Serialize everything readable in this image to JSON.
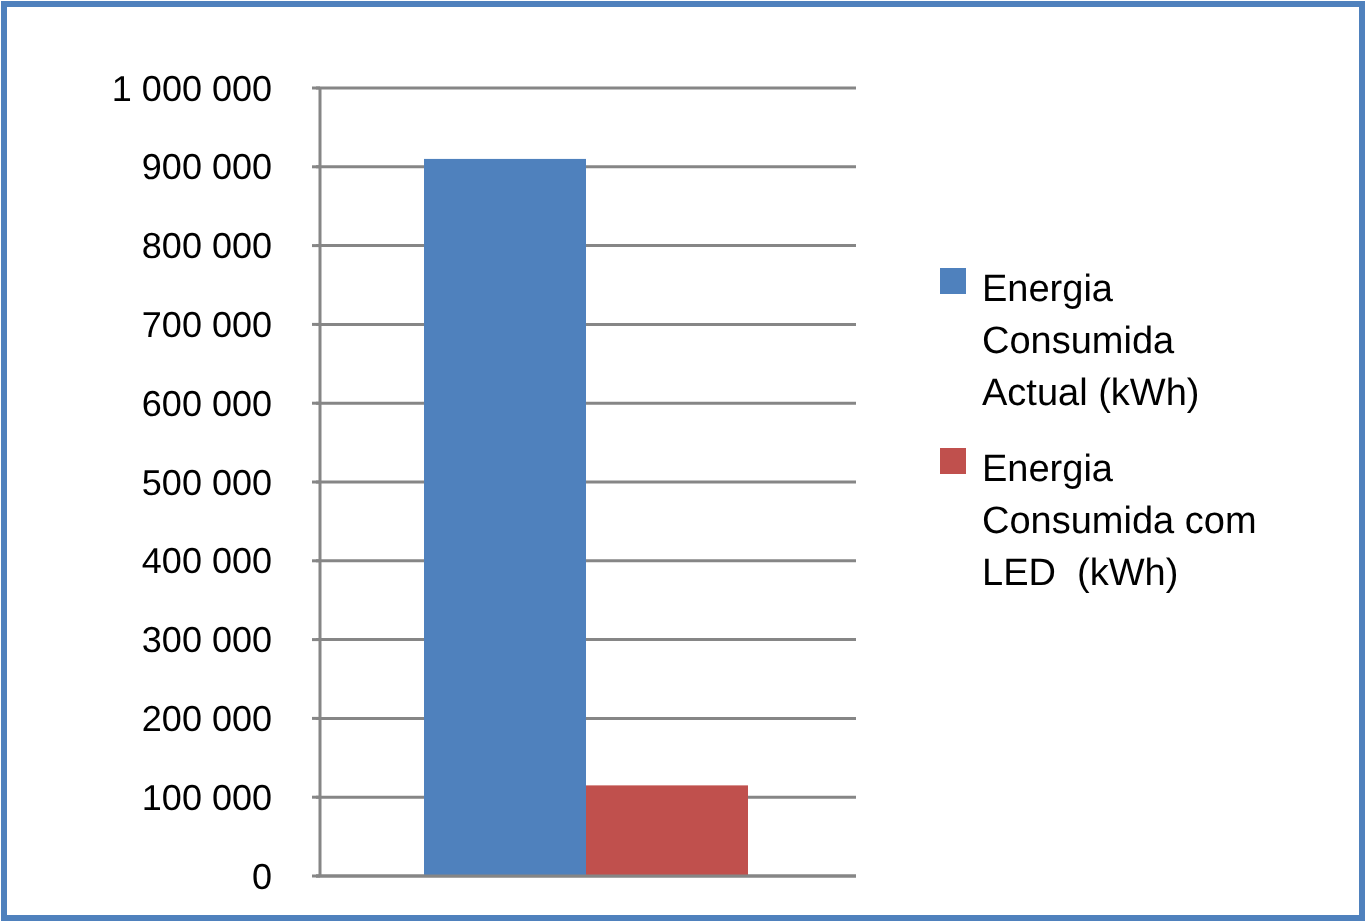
{
  "chart_data": {
    "type": "bar",
    "categories": [
      null
    ],
    "series": [
      {
        "name": "Energia Consumida Actual (kWh)",
        "color": "#4f81bd",
        "values": [
          910000
        ]
      },
      {
        "name": "Energia Consumida com LED  (kWh)",
        "color": "#c0504d",
        "values": [
          115000
        ]
      }
    ],
    "ylim": [
      0,
      1000000
    ],
    "yticks": [
      {
        "value": 0,
        "label": "0"
      },
      {
        "value": 100000,
        "label": "100 000"
      },
      {
        "value": 200000,
        "label": "200 000"
      },
      {
        "value": 300000,
        "label": "300 000"
      },
      {
        "value": 400000,
        "label": "400 000"
      },
      {
        "value": 500000,
        "label": "500 000"
      },
      {
        "value": 600000,
        "label": "600 000"
      },
      {
        "value": 700000,
        "label": "700 000"
      },
      {
        "value": 800000,
        "label": "800 000"
      },
      {
        "value": 900000,
        "label": "900 000"
      },
      {
        "value": 1000000,
        "label": "1 000 000"
      }
    ],
    "grid": "y",
    "legend": "right"
  }
}
